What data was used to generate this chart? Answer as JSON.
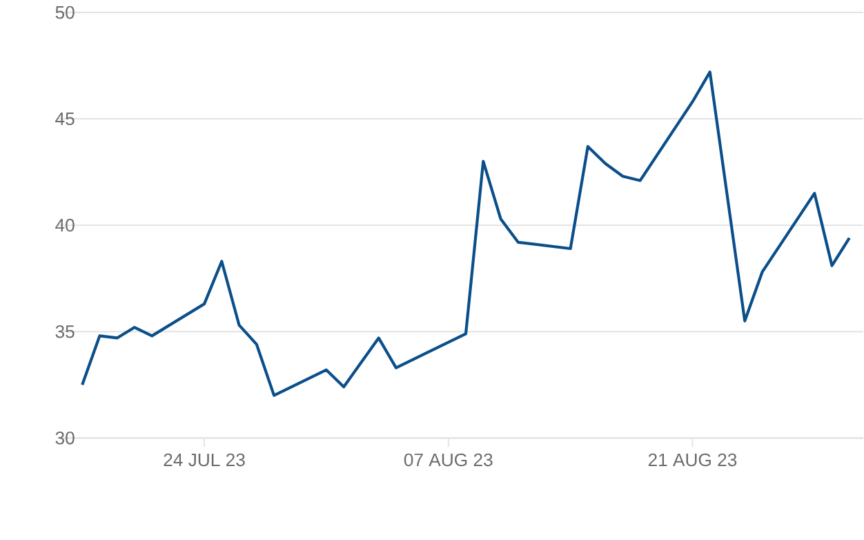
{
  "chart_data": {
    "type": "line",
    "grid": "y",
    "xlim": [
      "2023-07-15T14:00",
      "2023-08-30T19:00"
    ],
    "xticks": [
      {
        "value": "2023-07-24",
        "label": "24 JUL 23"
      },
      {
        "value": "2023-08-07",
        "label": "07 AUG 23"
      },
      {
        "value": "2023-08-21",
        "label": "21 AUG 23"
      }
    ],
    "ylim": [
      30,
      50
    ],
    "yticks": [
      30,
      35,
      40,
      45,
      50
    ],
    "x": [
      "2023-07-17",
      "2023-07-18",
      "2023-07-19",
      "2023-07-20",
      "2023-07-21",
      "2023-07-24",
      "2023-07-25",
      "2023-07-26",
      "2023-07-27",
      "2023-07-28",
      "2023-07-31",
      "2023-08-01",
      "2023-08-03",
      "2023-08-04",
      "2023-08-08",
      "2023-08-09",
      "2023-08-10",
      "2023-08-11",
      "2023-08-14",
      "2023-08-15",
      "2023-08-16",
      "2023-08-17",
      "2023-08-18",
      "2023-08-21",
      "2023-08-22",
      "2023-08-24",
      "2023-08-25",
      "2023-08-28",
      "2023-08-29",
      "2023-08-30"
    ],
    "series": [
      {
        "color": "#0b4f8a",
        "values": [
          32.5,
          34.8,
          34.7,
          35.2,
          34.8,
          36.3,
          38.3,
          35.3,
          34.4,
          32.0,
          33.2,
          32.4,
          34.7,
          33.3,
          34.9,
          43.0,
          40.3,
          39.2,
          38.9,
          43.7,
          42.9,
          42.3,
          42.1,
          45.8,
          47.2,
          35.5,
          37.8,
          41.5,
          38.1,
          39.4
        ]
      }
    ]
  }
}
